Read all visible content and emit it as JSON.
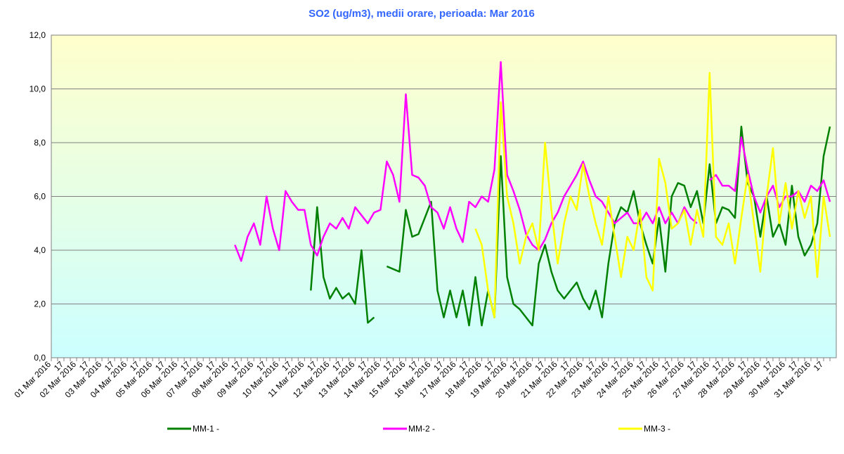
{
  "chart_data": {
    "type": "line",
    "title": "SO2 (ug/m3), medii orare, perioada: Mar 2016",
    "categories": [
      "01 Mar 2016",
      null,
      "17",
      null,
      "02 Mar 2016",
      null,
      "17",
      null,
      "03 Mar 2016",
      null,
      "17",
      null,
      "04 Mar 2016",
      null,
      "17",
      null,
      "05 Mar 2016",
      null,
      "17",
      null,
      "06 Mar 2016",
      null,
      "17",
      null,
      "07 Mar 2016",
      null,
      "17",
      null,
      "08 Mar 2016",
      null,
      "17",
      null,
      "09 Mar 2016",
      null,
      "17",
      null,
      "10 Mar 2016",
      null,
      "17",
      null,
      "11 Mar 2016",
      null,
      "17",
      null,
      "12 Mar 2016",
      null,
      "17",
      null,
      "13 Mar 2016",
      null,
      "17",
      null,
      "14 Mar 2016",
      null,
      "17",
      null,
      "15 Mar 2016",
      null,
      "17",
      null,
      "16 Mar 2016",
      null,
      "17",
      null,
      "17 Mar 2016",
      null,
      "17",
      null,
      "18 Mar 2016",
      null,
      "17",
      null,
      "19 Mar 2016",
      null,
      "17",
      null,
      "20 Mar 2016",
      null,
      "17",
      null,
      "21 Mar 2016",
      null,
      "17",
      null,
      "22 Mar 2016",
      null,
      "17",
      null,
      "23 Mar 2016",
      null,
      "17",
      null,
      "24 Mar 2016",
      null,
      "17",
      null,
      "25 Mar 2016",
      null,
      "17",
      null,
      "26 Mar 2016",
      null,
      "17",
      null,
      "27 Mar 2016",
      null,
      "17",
      null,
      "28 Mar 2016",
      null,
      "17",
      null,
      "29 Mar 2016",
      null,
      "17",
      null,
      "30 Mar 2016",
      null,
      "17",
      null,
      "31 Mar 2016",
      null,
      "17",
      null
    ],
    "series": [
      {
        "name": "MM-1 -",
        "color": "#008000",
        "values": [
          null,
          null,
          null,
          null,
          null,
          null,
          null,
          null,
          null,
          null,
          null,
          null,
          null,
          null,
          null,
          null,
          null,
          null,
          null,
          null,
          null,
          null,
          null,
          null,
          null,
          null,
          null,
          null,
          null,
          null,
          null,
          null,
          null,
          null,
          null,
          null,
          null,
          null,
          null,
          null,
          null,
          2.5,
          5.6,
          3.0,
          2.2,
          2.6,
          2.2,
          2.4,
          2.0,
          4.0,
          1.3,
          1.5,
          null,
          3.4,
          3.3,
          3.2,
          5.5,
          4.5,
          4.6,
          5.2,
          5.8,
          2.5,
          1.5,
          2.5,
          1.5,
          2.5,
          1.2,
          3.0,
          1.2,
          2.5,
          1.5,
          7.5,
          3.0,
          2.0,
          1.8,
          1.5,
          1.2,
          3.5,
          4.2,
          3.2,
          2.5,
          2.2,
          2.5,
          2.8,
          2.2,
          1.8,
          2.5,
          1.5,
          3.5,
          5.0,
          5.6,
          5.4,
          6.2,
          5.0,
          4.2,
          3.5,
          5.2,
          3.2,
          6.0,
          6.5,
          6.4,
          5.6,
          6.2,
          5.0,
          7.2,
          5.0,
          5.6,
          5.5,
          5.2,
          8.6,
          6.5,
          6.0,
          4.5,
          6.0,
          4.5,
          5.0,
          4.2,
          6.4,
          4.5,
          3.8,
          4.2,
          5.0,
          7.5,
          8.6
        ]
      },
      {
        "name": "MM-2 -",
        "color": "#ff00ff",
        "values": [
          null,
          null,
          null,
          null,
          null,
          null,
          null,
          null,
          null,
          null,
          null,
          null,
          null,
          null,
          null,
          null,
          null,
          null,
          null,
          null,
          null,
          null,
          null,
          null,
          null,
          null,
          null,
          null,
          null,
          4.2,
          3.6,
          4.5,
          5.0,
          4.2,
          6.0,
          4.8,
          4.0,
          6.2,
          5.8,
          5.5,
          5.5,
          4.2,
          3.8,
          4.5,
          5.0,
          4.8,
          5.2,
          4.8,
          5.6,
          5.3,
          5.0,
          5.4,
          5.5,
          7.3,
          6.8,
          5.8,
          9.8,
          6.8,
          6.7,
          6.4,
          5.6,
          5.4,
          4.8,
          5.6,
          4.8,
          4.3,
          5.8,
          5.6,
          6.0,
          5.8,
          7.0,
          11.0,
          6.8,
          6.2,
          5.5,
          4.6,
          4.2,
          4.0,
          4.4,
          5.0,
          5.4,
          6.0,
          6.4,
          6.8,
          7.3,
          6.6,
          6.0,
          5.8,
          5.4,
          5.0,
          5.2,
          5.4,
          5.0,
          5.0,
          5.4,
          5.0,
          5.6,
          5.0,
          5.4,
          5.0,
          5.6,
          5.2,
          5.0,
          null,
          6.6,
          6.8,
          6.4,
          6.4,
          6.2,
          8.2,
          7.0,
          6.0,
          5.4,
          6.0,
          6.4,
          5.6,
          6.0,
          6.0,
          6.2,
          5.8,
          6.4,
          6.2,
          6.6,
          5.8
        ]
      },
      {
        "name": "MM-3 -",
        "color": "#ffff00",
        "values": [
          null,
          null,
          null,
          null,
          null,
          null,
          null,
          null,
          null,
          null,
          null,
          null,
          null,
          null,
          null,
          null,
          null,
          null,
          null,
          null,
          null,
          null,
          null,
          null,
          null,
          null,
          null,
          null,
          null,
          null,
          null,
          null,
          null,
          null,
          null,
          null,
          null,
          null,
          null,
          null,
          null,
          null,
          null,
          null,
          null,
          null,
          null,
          null,
          null,
          null,
          null,
          null,
          null,
          null,
          null,
          null,
          null,
          null,
          null,
          null,
          null,
          null,
          null,
          null,
          null,
          null,
          null,
          4.8,
          4.2,
          2.5,
          1.5,
          9.5,
          6.0,
          5.0,
          3.5,
          4.5,
          5.0,
          4.0,
          8.0,
          5.5,
          3.5,
          5.0,
          6.0,
          5.5,
          7.2,
          6.0,
          5.0,
          4.2,
          6.0,
          4.5,
          3.0,
          4.5,
          4.0,
          5.5,
          3.0,
          2.5,
          7.4,
          6.5,
          4.8,
          5.0,
          5.5,
          4.2,
          5.5,
          4.5,
          10.6,
          4.5,
          4.2,
          5.0,
          3.5,
          5.2,
          6.8,
          5.0,
          3.2,
          6.0,
          7.8,
          5.0,
          6.5,
          4.8,
          6.2,
          5.2,
          6.0,
          3.0,
          6.0,
          4.5
        ]
      }
    ],
    "ylim": [
      0,
      12
    ],
    "yticks": [
      {
        "value": 0,
        "label": "0,0"
      },
      {
        "value": 2,
        "label": "2,0"
      },
      {
        "value": 4,
        "label": "4,0"
      },
      {
        "value": 6,
        "label": "6,0"
      },
      {
        "value": 8,
        "label": "8,0"
      },
      {
        "value": 10,
        "label": "10,0"
      },
      {
        "value": 12,
        "label": "12,0"
      }
    ],
    "grid": true,
    "legend": "bottom"
  }
}
